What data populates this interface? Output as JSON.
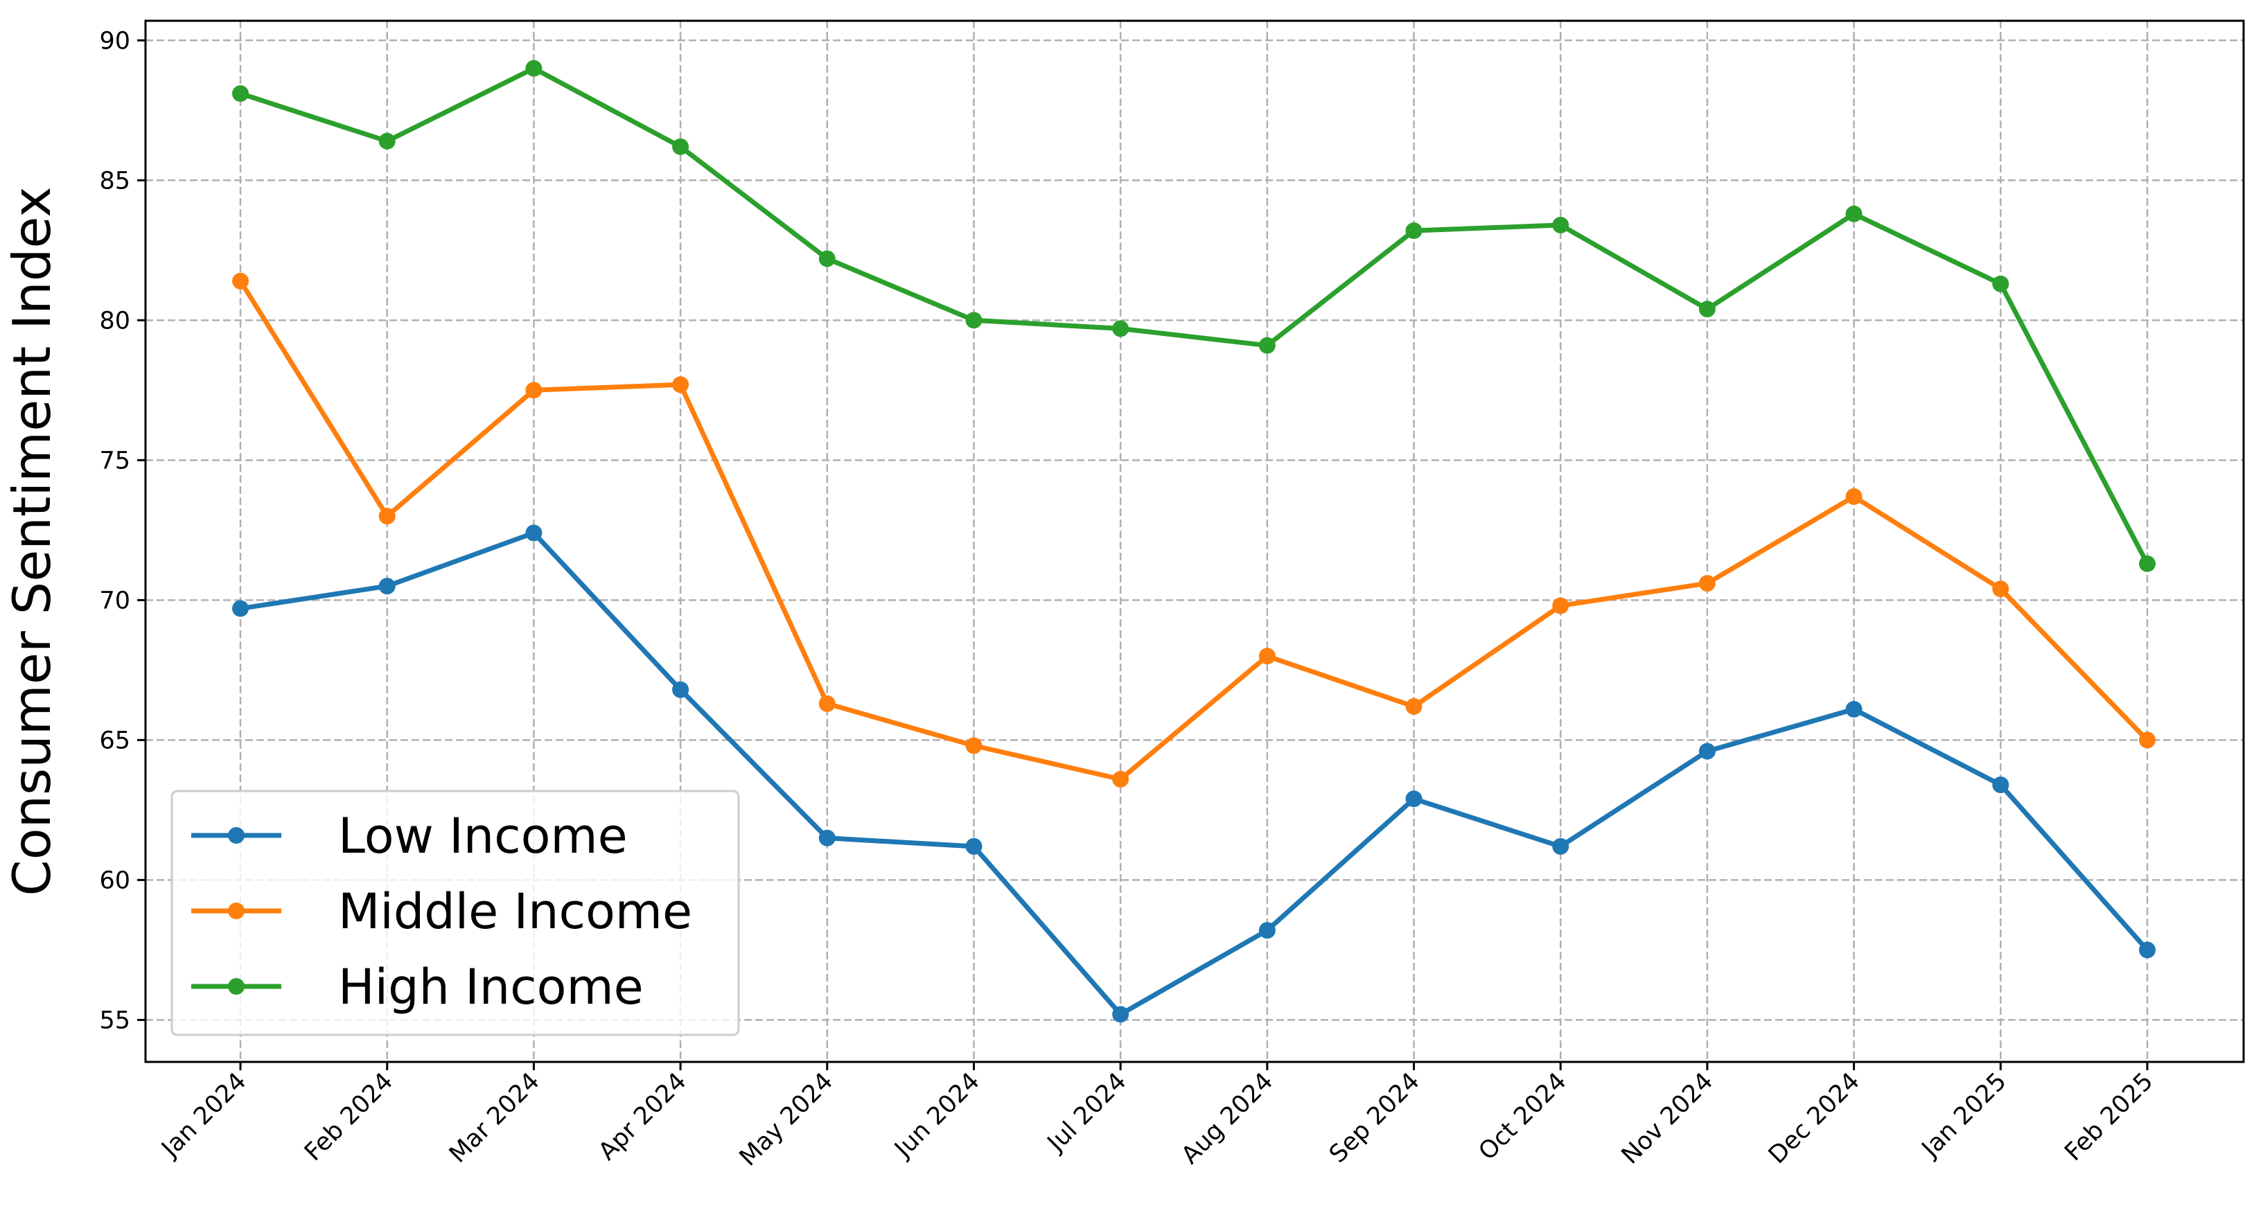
{
  "chart_data": {
    "type": "line",
    "title": "",
    "xlabel": "",
    "ylabel": "Consumer Sentiment Index",
    "categories": [
      "Jan 2024",
      "Feb 2024",
      "Mar 2024",
      "Apr 2024",
      "May 2024",
      "Jun 2024",
      "Jul 2024",
      "Aug 2024",
      "Sep 2024",
      "Oct 2024",
      "Nov 2024",
      "Dec 2024",
      "Jan 2025",
      "Feb 2025"
    ],
    "ylim": [
      53.5,
      90.7
    ],
    "yticks": [
      "55",
      "60",
      "65",
      "70",
      "75",
      "80",
      "85",
      "90"
    ],
    "grid": true,
    "legend_position": "lower-left",
    "series": [
      {
        "name": "Low Income",
        "color": "#1f77b4",
        "values": [
          69.7,
          70.5,
          72.4,
          66.8,
          61.5,
          61.2,
          55.2,
          58.2,
          62.9,
          61.2,
          64.6,
          66.1,
          63.4,
          57.5
        ]
      },
      {
        "name": "Middle Income",
        "color": "#ff7f0e",
        "values": [
          81.4,
          73.0,
          77.5,
          77.7,
          66.3,
          64.8,
          63.6,
          68.0,
          66.2,
          69.8,
          70.6,
          73.7,
          70.4,
          65.0
        ]
      },
      {
        "name": "High Income",
        "color": "#2ca02c",
        "values": [
          88.1,
          86.4,
          89.0,
          86.2,
          82.2,
          80.0,
          79.7,
          79.1,
          83.2,
          83.4,
          80.4,
          83.8,
          81.3,
          71.3
        ]
      }
    ]
  }
}
